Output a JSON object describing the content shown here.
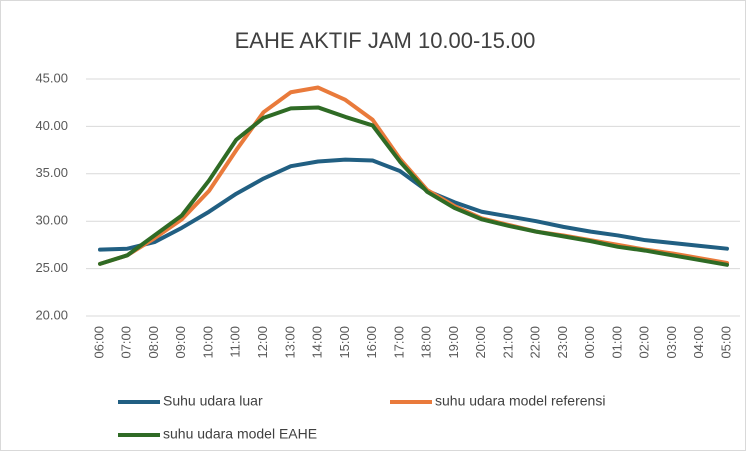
{
  "chart_data": {
    "type": "line",
    "title": "EAHE AKTIF JAM 10.00-15.00",
    "categories": [
      "06:00",
      "07:00",
      "08:00",
      "09:00",
      "10:00",
      "11:00",
      "12:00",
      "13:00",
      "14:00",
      "15:00",
      "16:00",
      "17:00",
      "18:00",
      "19:00",
      "20:00",
      "21:00",
      "22:00",
      "23:00",
      "00:00",
      "01:00",
      "02:00",
      "03:00",
      "04:00",
      "05:00"
    ],
    "series": [
      {
        "name": "Suhu udara luar",
        "color": "#215f82",
        "values": [
          27.0,
          27.1,
          27.8,
          29.3,
          31.0,
          32.9,
          34.5,
          35.8,
          36.3,
          36.5,
          36.4,
          35.3,
          33.2,
          32.0,
          31.0,
          30.5,
          30.0,
          29.4,
          28.9,
          28.5,
          28.0,
          27.7,
          27.4,
          27.1
        ]
      },
      {
        "name": "suhu udara model referensi",
        "color": "#e97a3b",
        "values": [
          25.5,
          26.4,
          28.2,
          30.2,
          33.2,
          37.5,
          41.5,
          43.6,
          44.1,
          42.8,
          40.7,
          36.6,
          33.3,
          31.6,
          30.3,
          29.6,
          28.9,
          28.5,
          28.0,
          27.5,
          27.0,
          26.6,
          26.1,
          25.6
        ]
      },
      {
        "name": "suhu udara model EAHE",
        "color": "#2f6b25",
        "values": [
          25.5,
          26.4,
          28.5,
          30.6,
          34.3,
          38.6,
          40.9,
          41.9,
          42.0,
          41.0,
          40.1,
          36.3,
          33.1,
          31.4,
          30.2,
          29.5,
          28.9,
          28.4,
          27.9,
          27.3,
          26.9,
          26.4,
          25.9,
          25.4
        ]
      }
    ],
    "ylim": [
      20,
      45
    ],
    "yticks": [
      {
        "value": 20,
        "label": "20.00"
      },
      {
        "value": 25,
        "label": "25.00"
      },
      {
        "value": 30,
        "label": "30.00"
      },
      {
        "value": 35,
        "label": "35.00"
      },
      {
        "value": 40,
        "label": "40.00"
      },
      {
        "value": 45,
        "label": "45.00"
      }
    ],
    "grid": true,
    "legend": "bottom"
  }
}
